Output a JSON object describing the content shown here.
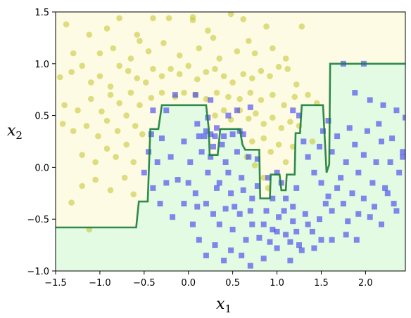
{
  "chart_data": {
    "type": "scatter",
    "title": "",
    "xlabel": "x",
    "xlabel_sub": "1",
    "ylabel": "x",
    "ylabel_sub": "2",
    "xlim": [
      -1.5,
      2.45
    ],
    "ylim": [
      -1.0,
      1.5
    ],
    "xticks": [
      "−1.5",
      "−1.0",
      "−0.5",
      "0.0",
      "0.5",
      "1.0",
      "1.5",
      "2.0"
    ],
    "xtick_values": [
      -1.5,
      -1.0,
      -0.5,
      0.0,
      0.5,
      1.0,
      1.5,
      2.0
    ],
    "yticks": [
      "−1.0",
      "−0.5",
      "0.0",
      "0.5",
      "1.0",
      "1.5"
    ],
    "ytick_values": [
      -1.0,
      -0.5,
      0.0,
      0.5,
      1.0,
      1.5
    ],
    "grid": false,
    "colors": {
      "region_class0": "#fdfbe3",
      "region_class1": "#e2fbe2",
      "boundary": "#1b7d3c",
      "class0_marker": "#c8c83a",
      "class1_marker": "#3a3af0"
    },
    "decision_boundary": [
      [
        -1.5,
        -0.58
      ],
      [
        -0.59,
        -0.58
      ],
      [
        -0.56,
        -0.33
      ],
      [
        -0.46,
        -0.33
      ],
      [
        -0.43,
        0.37
      ],
      [
        -0.34,
        0.37
      ],
      [
        -0.3,
        0.6
      ],
      [
        0.2,
        0.6
      ],
      [
        0.23,
        0.37
      ],
      [
        0.24,
        0.12
      ],
      [
        0.33,
        0.12
      ],
      [
        0.36,
        0.37
      ],
      [
        0.58,
        0.37
      ],
      [
        0.61,
        0.22
      ],
      [
        0.64,
        0.17
      ],
      [
        0.8,
        0.17
      ],
      [
        0.81,
        -0.3
      ],
      [
        0.92,
        -0.3
      ],
      [
        0.93,
        -0.07
      ],
      [
        1.03,
        -0.07
      ],
      [
        1.05,
        -0.22
      ],
      [
        1.1,
        -0.22
      ],
      [
        1.11,
        -0.07
      ],
      [
        1.2,
        -0.07
      ],
      [
        1.21,
        0.33
      ],
      [
        1.26,
        0.33
      ],
      [
        1.28,
        0.6
      ],
      [
        1.52,
        0.6
      ],
      [
        1.56,
        -0.05
      ],
      [
        1.59,
        0.03
      ],
      [
        1.6,
        1.0
      ],
      [
        2.45,
        1.0
      ]
    ],
    "series": [
      {
        "marker": "circle",
        "points": [
          [
            -1.38,
            1.38
          ],
          [
            -1.12,
            1.28
          ],
          [
            -0.92,
            1.34
          ],
          [
            -0.78,
            1.44
          ],
          [
            -0.58,
            1.28
          ],
          [
            -0.4,
            1.44
          ],
          [
            -0.22,
            1.44
          ],
          [
            0.05,
            1.42
          ],
          [
            0.05,
            1.45
          ],
          [
            0.22,
            1.32
          ],
          [
            0.48,
            1.48
          ],
          [
            0.62,
            1.43
          ],
          [
            0.88,
            1.36
          ],
          [
            1.28,
            1.36
          ],
          [
            -1.45,
            0.87
          ],
          [
            -1.32,
            0.92
          ],
          [
            -1.2,
            0.98
          ],
          [
            -1.1,
            0.82
          ],
          [
            -1.0,
            0.88
          ],
          [
            -0.88,
            0.78
          ],
          [
            -0.78,
            0.98
          ],
          [
            -0.68,
            0.93
          ],
          [
            -0.58,
            0.86
          ],
          [
            -0.48,
            0.82
          ],
          [
            -0.4,
            0.95
          ],
          [
            -0.3,
            0.88
          ],
          [
            -0.2,
            0.95
          ],
          [
            -0.1,
            0.9
          ],
          [
            0.0,
            0.98
          ],
          [
            0.1,
            0.85
          ],
          [
            0.2,
            0.92
          ],
          [
            0.3,
            0.95
          ],
          [
            0.4,
            0.88
          ],
          [
            0.5,
            0.82
          ],
          [
            0.62,
            0.9
          ],
          [
            0.72,
            0.86
          ],
          [
            0.82,
            0.93
          ],
          [
            0.92,
            0.88
          ],
          [
            1.02,
            0.97
          ],
          [
            1.12,
            0.95
          ],
          [
            1.22,
            0.8
          ],
          [
            -1.4,
            0.6
          ],
          [
            -1.25,
            0.55
          ],
          [
            -1.1,
            0.66
          ],
          [
            -0.98,
            0.54
          ],
          [
            -0.88,
            0.7
          ],
          [
            -0.78,
            0.62
          ],
          [
            -0.65,
            0.72
          ],
          [
            -0.55,
            0.6
          ],
          [
            -0.42,
            0.67
          ],
          [
            -0.3,
            0.72
          ],
          [
            -0.15,
            0.68
          ],
          [
            -0.05,
            0.72
          ],
          [
            0.08,
            0.7
          ],
          [
            0.2,
            0.66
          ],
          [
            0.32,
            0.72
          ],
          [
            0.45,
            0.68
          ],
          [
            0.58,
            0.66
          ],
          [
            0.7,
            0.72
          ],
          [
            0.82,
            0.65
          ],
          [
            0.95,
            0.7
          ],
          [
            1.08,
            0.6
          ],
          [
            1.2,
            0.68
          ],
          [
            -1.42,
            0.42
          ],
          [
            -1.3,
            0.35
          ],
          [
            -1.15,
            0.4
          ],
          [
            -1.02,
            0.3
          ],
          [
            -0.92,
            0.45
          ],
          [
            -0.8,
            0.35
          ],
          [
            -0.7,
            0.5
          ],
          [
            -0.6,
            0.4
          ],
          [
            -0.52,
            0.32
          ],
          [
            0.3,
            0.5
          ],
          [
            0.4,
            0.55
          ],
          [
            0.48,
            0.46
          ],
          [
            0.58,
            0.55
          ],
          [
            0.68,
            0.47
          ],
          [
            0.76,
            0.52
          ],
          [
            0.85,
            0.42
          ],
          [
            0.95,
            0.48
          ],
          [
            1.05,
            0.38
          ],
          [
            1.15,
            0.44
          ],
          [
            1.25,
            0.4
          ],
          [
            -1.2,
            0.12
          ],
          [
            -1.05,
            0.05
          ],
          [
            -0.92,
            0.18
          ],
          [
            -0.82,
            0.1
          ],
          [
            -0.7,
            0.22
          ],
          [
            -0.62,
            0.05
          ],
          [
            0.66,
            0.1
          ],
          [
            0.72,
            0.25
          ],
          [
            0.75,
            0.02
          ],
          [
            0.85,
            0.28
          ],
          [
            0.93,
            0.15
          ],
          [
            1.02,
            0.22
          ],
          [
            1.1,
            0.05
          ],
          [
            1.18,
            0.2
          ],
          [
            -1.2,
            -0.18
          ],
          [
            -1.05,
            -0.12
          ],
          [
            -0.88,
            -0.22
          ],
          [
            -0.72,
            -0.1
          ],
          [
            -0.62,
            -0.26
          ],
          [
            -1.32,
            -0.34
          ],
          [
            -1.12,
            -0.6
          ],
          [
            0.85,
            -0.1
          ],
          [
            0.9,
            -0.2
          ],
          [
            -1.0,
            1.1
          ],
          [
            -0.85,
            1.15
          ],
          [
            -0.65,
            1.05
          ],
          [
            -0.45,
            1.12
          ],
          [
            -0.28,
            1.2
          ],
          [
            -0.1,
            1.08
          ],
          [
            0.12,
            1.15
          ],
          [
            0.35,
            1.05
          ],
          [
            0.55,
            1.12
          ],
          [
            0.75,
            1.1
          ],
          [
            0.95,
            1.15
          ],
          [
            -1.3,
            1.1
          ],
          [
            -0.55,
            1.22
          ],
          [
            0.28,
            1.25
          ],
          [
            0.68,
            1.22
          ],
          [
            1.1,
            1.05
          ],
          [
            1.35,
            0.7
          ],
          [
            1.45,
            0.62
          ],
          [
            1.4,
            0.25
          ]
        ]
      },
      {
        "marker": "square",
        "points": [
          [
            1.75,
            1.0
          ],
          [
            1.98,
            1.0
          ],
          [
            2.05,
            0.65
          ],
          [
            2.2,
            0.6
          ],
          [
            2.35,
            0.55
          ],
          [
            2.45,
            0.48
          ],
          [
            1.88,
            0.72
          ],
          [
            2.15,
            0.42
          ],
          [
            2.3,
            0.28
          ],
          [
            2.42,
            0.15
          ],
          [
            0.2,
            0.35
          ],
          [
            0.25,
            0.32
          ],
          [
            0.1,
            0.42
          ],
          [
            0.3,
            0.3
          ],
          [
            0.5,
            0.32
          ],
          [
            0.55,
            0.55
          ],
          [
            0.45,
            0.5
          ],
          [
            0.7,
            0.58
          ],
          [
            0.25,
            0.65
          ],
          [
            0.08,
            0.7
          ],
          [
            -0.15,
            0.7
          ],
          [
            -0.25,
            0.55
          ],
          [
            -0.4,
            0.55
          ],
          [
            1.18,
            0.55
          ],
          [
            1.25,
            0.5
          ],
          [
            -0.3,
            0.28
          ],
          [
            -0.35,
            0.05
          ],
          [
            -0.45,
            0.15
          ],
          [
            -0.5,
            -0.05
          ],
          [
            -0.4,
            -0.2
          ],
          [
            -0.32,
            -0.35
          ],
          [
            -0.2,
            0.1
          ],
          [
            -0.12,
            -0.12
          ],
          [
            -0.05,
            0.25
          ],
          [
            0.02,
            0.05
          ],
          [
            0.08,
            -0.25
          ],
          [
            0.15,
            0.15
          ],
          [
            0.22,
            -0.05
          ],
          [
            0.28,
            0.2
          ],
          [
            0.35,
            -0.15
          ],
          [
            0.42,
            0.05
          ],
          [
            0.48,
            -0.25
          ],
          [
            0.55,
            0.15
          ],
          [
            0.6,
            -0.1
          ],
          [
            0.68,
            0.1
          ],
          [
            0.72,
            -0.3
          ],
          [
            0.78,
            0.08
          ],
          [
            0.2,
            -0.35
          ],
          [
            0.28,
            -0.45
          ],
          [
            0.35,
            -0.55
          ],
          [
            0.42,
            -0.4
          ],
          [
            0.5,
            -0.6
          ],
          [
            0.58,
            -0.45
          ],
          [
            0.65,
            -0.7
          ],
          [
            0.72,
            -0.55
          ],
          [
            0.8,
            -0.68
          ],
          [
            0.88,
            -0.42
          ],
          [
            0.95,
            -0.6
          ],
          [
            1.02,
            -0.48
          ],
          [
            1.1,
            -0.65
          ],
          [
            1.18,
            -0.52
          ],
          [
            1.25,
            -0.75
          ],
          [
            1.32,
            -0.45
          ],
          [
            1.4,
            -0.62
          ],
          [
            1.48,
            -0.5
          ],
          [
            1.55,
            -0.35
          ],
          [
            0.05,
            -0.55
          ],
          [
            0.12,
            -0.7
          ],
          [
            0.2,
            -0.85
          ],
          [
            0.3,
            -0.75
          ],
          [
            0.4,
            -0.9
          ],
          [
            0.48,
            -0.8
          ],
          [
            0.6,
            -0.85
          ],
          [
            0.7,
            -0.95
          ],
          [
            0.85,
            -0.88
          ],
          [
            1.0,
            -0.78
          ],
          [
            1.15,
            -0.9
          ],
          [
            1.28,
            -0.8
          ],
          [
            1.0,
            -0.05
          ],
          [
            1.05,
            -0.15
          ],
          [
            1.1,
            -0.3
          ],
          [
            1.18,
            -0.38
          ],
          [
            1.22,
            -0.2
          ],
          [
            0.95,
            -0.3
          ],
          [
            0.9,
            -0.1
          ],
          [
            1.3,
            0.25
          ],
          [
            1.35,
            0.1
          ],
          [
            1.42,
            -0.05
          ],
          [
            1.48,
            0.2
          ],
          [
            1.52,
            0.35
          ],
          [
            1.58,
            0.45
          ],
          [
            1.62,
            0.15
          ],
          [
            1.68,
            0.3
          ],
          [
            1.72,
            -0.1
          ],
          [
            1.78,
            0.05
          ],
          [
            1.82,
            0.38
          ],
          [
            1.88,
            0.22
          ],
          [
            1.92,
            -0.05
          ],
          [
            1.98,
            0.12
          ],
          [
            2.02,
            0.35
          ],
          [
            2.08,
            -0.15
          ],
          [
            2.12,
            0.05
          ],
          [
            2.18,
            0.25
          ],
          [
            2.22,
            -0.2
          ],
          [
            2.28,
            0.05
          ],
          [
            2.32,
            -0.35
          ],
          [
            2.38,
            -0.05
          ],
          [
            2.42,
            0.1
          ],
          [
            1.5,
            -0.15
          ],
          [
            1.58,
            -0.28
          ],
          [
            1.62,
            -0.42
          ],
          [
            1.68,
            -0.2
          ],
          [
            1.75,
            -0.35
          ],
          [
            1.8,
            -0.52
          ],
          [
            1.85,
            -0.25
          ],
          [
            1.92,
            -0.45
          ],
          [
            1.98,
            -0.3
          ],
          [
            2.05,
            -0.48
          ],
          [
            2.1,
            -0.38
          ],
          [
            2.18,
            -0.55
          ],
          [
            2.25,
            -0.25
          ],
          [
            2.35,
            -0.42
          ],
          [
            1.62,
            -0.7
          ],
          [
            1.78,
            -0.65
          ],
          [
            1.9,
            -0.7
          ],
          [
            -0.25,
            -0.15
          ],
          [
            -0.18,
            -0.48
          ],
          [
            -0.05,
            -0.35
          ],
          [
            0.0,
            -0.15
          ],
          [
            0.1,
            -0.38
          ],
          [
            0.18,
            0.3
          ],
          [
            0.25,
            0.1
          ],
          [
            0.32,
            -0.2
          ],
          [
            0.38,
            0.22
          ],
          [
            0.45,
            -0.05
          ],
          [
            0.52,
            -0.38
          ],
          [
            0.62,
            -0.22
          ],
          [
            0.7,
            -0.42
          ],
          [
            0.78,
            -0.18
          ],
          [
            0.85,
            -0.55
          ],
          [
            0.92,
            -0.72
          ],
          [
            1.0,
            -0.62
          ],
          [
            1.08,
            -0.42
          ],
          [
            1.15,
            -0.72
          ],
          [
            1.22,
            -0.62
          ],
          [
            1.35,
            -0.55
          ],
          [
            1.42,
            -0.78
          ],
          [
            1.5,
            -0.7
          ],
          [
            0.32,
            0.38
          ],
          [
            0.4,
            0.3
          ],
          [
            0.58,
            0.35
          ],
          [
            0.62,
            0.32
          ],
          [
            0.22,
            0.48
          ],
          [
            0.12,
            0.3
          ],
          [
            -0.42,
            0.32
          ]
        ]
      }
    ]
  }
}
